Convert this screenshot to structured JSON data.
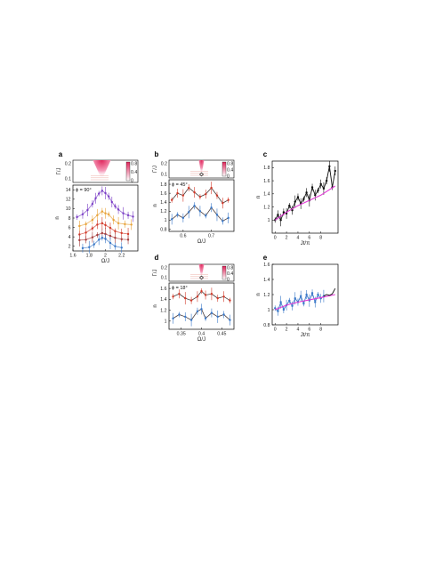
{
  "colors": {
    "purple": "#7b3fc6",
    "orange": "#e8a33a",
    "red": "#d23a2a",
    "darkred": "#a53a3a",
    "blue": "#3a78c8",
    "black": "#111111",
    "magenta": "#e23ad6",
    "heat_hi": "#e0245a",
    "heat_lo": "#ffffff"
  },
  "chart_data": [
    {
      "panel": "a",
      "type": "line",
      "annotation": "ϕ = 90°",
      "xlabel": "Ω/J",
      "ylabel": "n",
      "xlim": [
        1.6,
        2.4
      ],
      "ylim": [
        1,
        15
      ],
      "xticks": [
        "1.6",
        "1.8",
        "2",
        "2.2"
      ],
      "yticks": [
        "2",
        "4",
        "6",
        "8",
        "10",
        "12",
        "14"
      ],
      "inset": {
        "ylabel": "Γ/J",
        "yticks": [
          "0.1",
          "0.2"
        ],
        "colorbar_ticks": [
          "0.8",
          "0.4",
          "0"
        ]
      },
      "series": [
        {
          "color": "purple",
          "x": [
            1.65,
            1.72,
            1.78,
            1.84,
            1.88,
            1.92,
            1.96,
            2.0,
            2.04,
            2.08,
            2.12,
            2.16,
            2.22,
            2.28,
            2.34
          ],
          "values": [
            8.2,
            8.8,
            9.7,
            11.0,
            12.2,
            13.2,
            13.8,
            13.3,
            12.6,
            11.4,
            10.5,
            9.8,
            9.0,
            8.6,
            8.3
          ]
        },
        {
          "color": "orange",
          "x": [
            1.68,
            1.76,
            1.84,
            1.9,
            1.96,
            2.0,
            2.04,
            2.1,
            2.16,
            2.24,
            2.32
          ],
          "values": [
            6.3,
            6.7,
            7.6,
            8.6,
            9.4,
            9.0,
            8.8,
            7.6,
            6.9,
            6.7,
            6.6
          ]
        },
        {
          "color": "red",
          "x": [
            1.68,
            1.76,
            1.84,
            1.9,
            1.96,
            2.0,
            2.06,
            2.12,
            2.2,
            2.28
          ],
          "values": [
            4.5,
            4.9,
            5.8,
            6.6,
            6.9,
            6.5,
            5.9,
            5.2,
            4.8,
            4.6
          ]
        },
        {
          "color": "darkred",
          "x": [
            1.68,
            1.76,
            1.84,
            1.9,
            1.96,
            2.0,
            2.06,
            2.12,
            2.2,
            2.28
          ],
          "values": [
            3.3,
            3.4,
            3.9,
            4.4,
            4.8,
            4.6,
            4.2,
            3.8,
            3.5,
            3.4
          ]
        },
        {
          "color": "blue",
          "x": [
            1.72,
            1.8,
            1.86,
            1.92,
            1.96,
            2.0,
            2.06,
            2.12,
            2.2
          ],
          "values": [
            1.6,
            1.8,
            2.4,
            3.4,
            3.8,
            3.6,
            2.7,
            2.0,
            1.7
          ]
        }
      ]
    },
    {
      "panel": "b",
      "type": "line",
      "annotation": "ϕ = 45°",
      "xlabel": "Ω/J",
      "ylabel": "n",
      "xlim": [
        0.55,
        0.78
      ],
      "ylim": [
        0.75,
        1.9
      ],
      "xticks": [
        "0.6",
        "0.7"
      ],
      "yticks": [
        "0.8",
        "1",
        "1.2",
        "1.4",
        "1.6",
        "1.8"
      ],
      "inset": {
        "ylabel": "Γ/J",
        "yticks": [
          "0.1",
          "0.2"
        ],
        "colorbar_ticks": [
          "0.8",
          "0.4",
          "0"
        ]
      },
      "series": [
        {
          "color": "red",
          "x": [
            0.56,
            0.58,
            0.6,
            0.62,
            0.64,
            0.66,
            0.68,
            0.7,
            0.72,
            0.74,
            0.76
          ],
          "values": [
            1.45,
            1.6,
            1.55,
            1.72,
            1.62,
            1.52,
            1.58,
            1.72,
            1.55,
            1.38,
            1.45
          ]
        },
        {
          "color": "blue",
          "x": [
            0.56,
            0.58,
            0.6,
            0.62,
            0.64,
            0.66,
            0.68,
            0.7,
            0.72,
            0.74,
            0.76
          ],
          "values": [
            1.02,
            1.12,
            1.05,
            1.18,
            1.32,
            1.2,
            1.1,
            1.28,
            1.12,
            0.98,
            1.05
          ]
        }
      ]
    },
    {
      "panel": "d",
      "type": "line",
      "annotation": "ϕ = 18°",
      "xlabel": "Ω/J",
      "ylabel": "n",
      "xlim": [
        0.32,
        0.48
      ],
      "ylim": [
        0.85,
        1.7
      ],
      "xticks": [
        "0.35",
        "0.4",
        "0.45"
      ],
      "yticks": [
        "1",
        "1.2",
        "1.4",
        "1.6"
      ],
      "inset": {
        "ylabel": "Γ/J",
        "yticks": [
          "0.1",
          "0.2"
        ],
        "colorbar_ticks": [
          "0.8",
          "0.4",
          "0"
        ]
      },
      "series": [
        {
          "color": "red",
          "x": [
            0.33,
            0.345,
            0.36,
            0.375,
            0.39,
            0.4,
            0.41,
            0.425,
            0.44,
            0.455,
            0.47
          ],
          "values": [
            1.45,
            1.5,
            1.42,
            1.38,
            1.45,
            1.55,
            1.48,
            1.5,
            1.42,
            1.45,
            1.38
          ]
        },
        {
          "color": "blue",
          "x": [
            0.33,
            0.345,
            0.36,
            0.375,
            0.39,
            0.4,
            0.41,
            0.425,
            0.44,
            0.455,
            0.47
          ],
          "values": [
            1.05,
            1.12,
            1.08,
            1.02,
            1.18,
            1.22,
            1.05,
            1.15,
            1.08,
            1.12,
            1.02
          ]
        }
      ]
    },
    {
      "panel": "c",
      "type": "line",
      "xlabel": "Jt/π",
      "ylabel": "n",
      "xlim": [
        -0.5,
        11
      ],
      "ylim": [
        0.8,
        1.9
      ],
      "xticks": [
        "0",
        "2",
        "4",
        "6",
        "8"
      ],
      "yticks": [
        "1",
        "1.2",
        "1.4",
        "1.6",
        "1.8"
      ],
      "series": [
        {
          "color": "black",
          "x": [
            0,
            0.5,
            1,
            1.5,
            2,
            2.5,
            3,
            3.5,
            4,
            4.5,
            5,
            5.5,
            6,
            6.5,
            7,
            7.5,
            8,
            8.5,
            9,
            9.5,
            10,
            10.5
          ],
          "values": [
            1.0,
            1.08,
            1.0,
            1.12,
            1.1,
            1.22,
            1.15,
            1.28,
            1.35,
            1.25,
            1.32,
            1.42,
            1.3,
            1.5,
            1.38,
            1.45,
            1.55,
            1.48,
            1.6,
            1.82,
            1.5,
            1.75
          ]
        },
        {
          "color": "magenta",
          "x": [
            0,
            2,
            4,
            6,
            8,
            10.5
          ],
          "values": [
            1.0,
            1.12,
            1.22,
            1.3,
            1.38,
            1.52
          ]
        }
      ]
    },
    {
      "panel": "e",
      "type": "line",
      "xlabel": "Jt/π",
      "ylabel": "n",
      "xlim": [
        -0.5,
        11
      ],
      "ylim": [
        0.8,
        1.6
      ],
      "xticks": [
        "0",
        "2",
        "4",
        "6",
        "8"
      ],
      "yticks": [
        "0.8",
        "1",
        "1.2",
        "1.4",
        "1.6"
      ],
      "series": [
        {
          "color": "blue",
          "x": [
            0,
            0.5,
            1,
            1.5,
            2,
            2.5,
            3,
            3.5,
            4,
            4.5,
            5,
            5.5,
            6,
            6.5,
            7,
            7.5,
            8,
            8.5
          ],
          "values": [
            1.02,
            0.98,
            1.1,
            1.0,
            1.06,
            1.12,
            1.05,
            1.15,
            1.1,
            1.18,
            1.08,
            1.2,
            1.12,
            1.22,
            1.1,
            1.2,
            1.15,
            1.18
          ]
        },
        {
          "color": "magenta",
          "x": [
            0,
            2,
            4,
            6,
            8,
            10.5
          ],
          "values": [
            1.0,
            1.06,
            1.1,
            1.13,
            1.16,
            1.2
          ]
        },
        {
          "color": "black",
          "x": [
            8.5,
            9,
            9.5,
            10,
            10.5
          ],
          "values": [
            1.18,
            1.2,
            1.19,
            1.21,
            1.28
          ]
        }
      ]
    }
  ]
}
